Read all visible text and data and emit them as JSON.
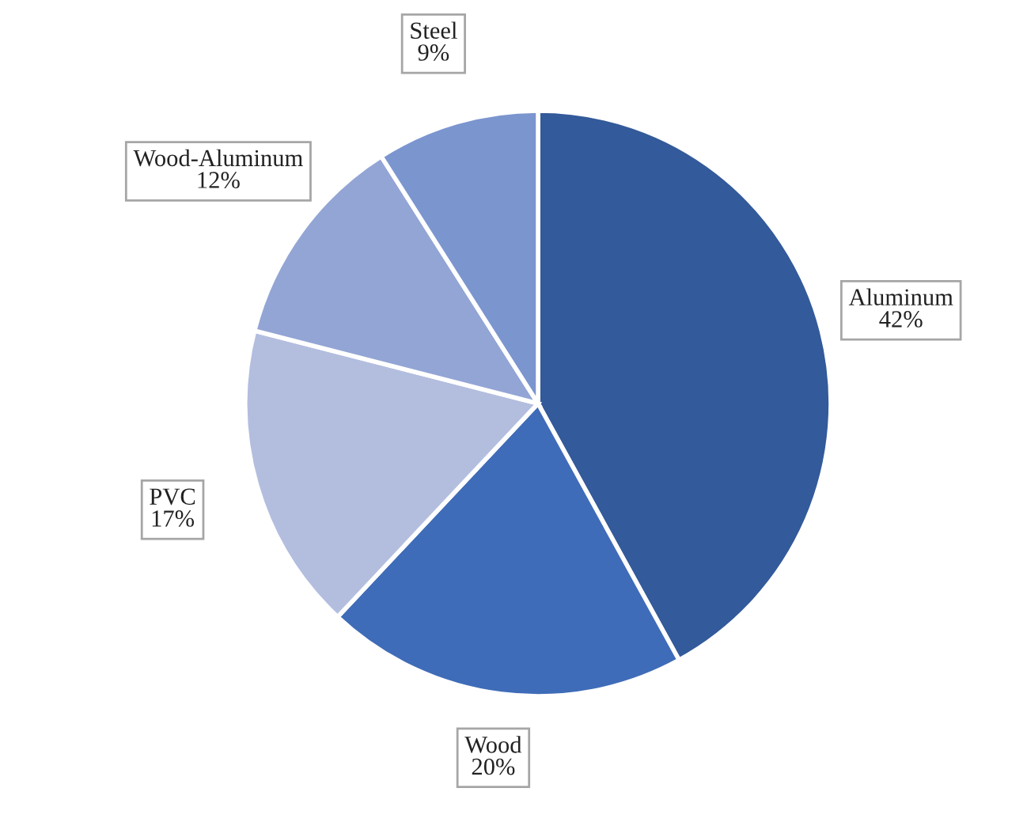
{
  "chart_data": {
    "type": "pie",
    "categories": [
      "Aluminum",
      "Wood",
      "PVC",
      "Wood-Aluminum",
      "Steel"
    ],
    "values": [
      42,
      20,
      17,
      12,
      9
    ],
    "colors": [
      "#335a9a",
      "#3f6cb8",
      "#b3bedf",
      "#93a5d5",
      "#7b95cf"
    ],
    "value_labels": [
      "42%",
      "20%",
      "17%",
      "12%",
      "9%"
    ],
    "legend": false
  }
}
